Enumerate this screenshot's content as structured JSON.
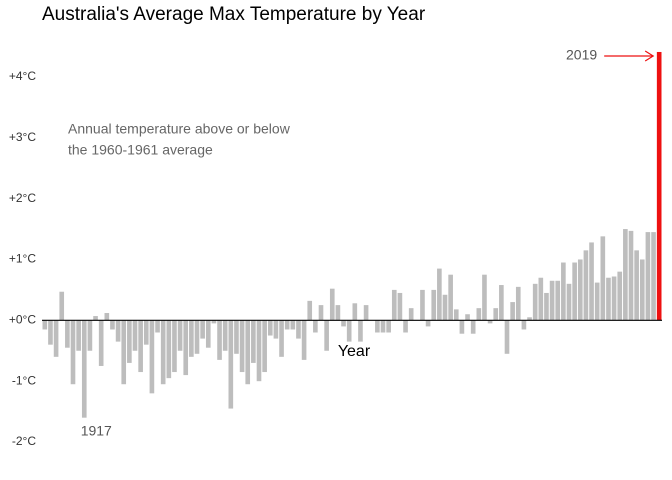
{
  "chart_data": {
    "type": "bar",
    "title": "Australia's Average Max Temperature by Year",
    "annotation": [
      "Annual temperature above or below",
      "the 1960-1961 average"
    ],
    "x_label": "Year",
    "categories": [
      null,
      null,
      null,
      null,
      null,
      null,
      null,
      "1917",
      null,
      null,
      null,
      null,
      null,
      null,
      null,
      null,
      null,
      null,
      null,
      null,
      null,
      null,
      null,
      null,
      null,
      null,
      null,
      null,
      null,
      null,
      null,
      null,
      null,
      null,
      null,
      null,
      null,
      null,
      null,
      null,
      null,
      null,
      null,
      null,
      null,
      null,
      null,
      null,
      null,
      null,
      null,
      null,
      null,
      null,
      null,
      null,
      null,
      null,
      null,
      null,
      null,
      null,
      null,
      null,
      null,
      null,
      null,
      null,
      null,
      null,
      null,
      null,
      null,
      null,
      null,
      null,
      null,
      null,
      null,
      null,
      null,
      null,
      null,
      null,
      null,
      null,
      null,
      null,
      null,
      null,
      null,
      null,
      null,
      null,
      null,
      null,
      null,
      null,
      null,
      null,
      null,
      null,
      null,
      null,
      null,
      null,
      null,
      null,
      null,
      "2019"
    ],
    "values": [
      -0.15,
      -0.4,
      -0.6,
      0.47,
      -0.45,
      -1.05,
      -0.5,
      -1.6,
      -0.5,
      0.07,
      -0.75,
      0.12,
      -0.15,
      -0.35,
      -1.05,
      -0.7,
      -0.5,
      -0.85,
      -0.4,
      -1.2,
      -0.2,
      -1.05,
      -0.95,
      -0.85,
      -0.5,
      -0.9,
      -0.6,
      -0.55,
      -0.3,
      -0.45,
      -0.05,
      -0.65,
      -0.5,
      -1.45,
      -0.55,
      -0.85,
      -1.05,
      -0.7,
      -1.0,
      -0.85,
      -0.25,
      -0.3,
      -0.6,
      -0.15,
      -0.15,
      -0.3,
      -0.65,
      0.32,
      -0.2,
      0.25,
      -0.5,
      0.52,
      0.25,
      -0.1,
      -0.35,
      0.28,
      -0.35,
      0.25,
      0,
      -0.2,
      -0.2,
      -0.2,
      0.5,
      0.45,
      -0.2,
      0.2,
      0,
      0.5,
      -0.1,
      0.5,
      0.85,
      0.42,
      0.75,
      0.18,
      -0.22,
      0.1,
      -0.22,
      0.2,
      0.75,
      -0.05,
      0.2,
      0.58,
      -0.55,
      0.3,
      0.55,
      -0.15,
      0.05,
      0.6,
      0.7,
      0.45,
      0.65,
      0.65,
      0.95,
      0.6,
      0.95,
      1.0,
      1.15,
      1.28,
      0.62,
      1.38,
      0.7,
      0.72,
      0.8,
      1.5,
      1.47,
      1.15,
      1.0,
      1.45,
      1.45,
      4.41
    ],
    "colors": [
      "#bdbdbd",
      "#bdbdbd",
      "#bdbdbd",
      "#bdbdbd",
      "#bdbdbd",
      "#bdbdbd",
      "#bdbdbd",
      "#bdbdbd",
      "#bdbdbd",
      "#bdbdbd",
      "#bdbdbd",
      "#bdbdbd",
      "#bdbdbd",
      "#bdbdbd",
      "#bdbdbd",
      "#bdbdbd",
      "#bdbdbd",
      "#bdbdbd",
      "#bdbdbd",
      "#bdbdbd",
      "#bdbdbd",
      "#bdbdbd",
      "#bdbdbd",
      "#bdbdbd",
      "#bdbdbd",
      "#bdbdbd",
      "#bdbdbd",
      "#bdbdbd",
      "#bdbdbd",
      "#bdbdbd",
      "#bdbdbd",
      "#bdbdbd",
      "#bdbdbd",
      "#bdbdbd",
      "#bdbdbd",
      "#bdbdbd",
      "#bdbdbd",
      "#bdbdbd",
      "#bdbdbd",
      "#bdbdbd",
      "#bdbdbd",
      "#bdbdbd",
      "#bdbdbd",
      "#bdbdbd",
      "#bdbdbd",
      "#bdbdbd",
      "#bdbdbd",
      "#bdbdbd",
      "#bdbdbd",
      "#bdbdbd",
      "#bdbdbd",
      "#bdbdbd",
      "#bdbdbd",
      "#bdbdbd",
      "#bdbdbd",
      "#bdbdbd",
      "#bdbdbd",
      "#bdbdbd",
      "#bdbdbd",
      "#bdbdbd",
      "#bdbdbd",
      "#bdbdbd",
      "#bdbdbd",
      "#bdbdbd",
      "#bdbdbd",
      "#bdbdbd",
      "#bdbdbd",
      "#bdbdbd",
      "#bdbdbd",
      "#bdbdbd",
      "#bdbdbd",
      "#bdbdbd",
      "#bdbdbd",
      "#bdbdbd",
      "#bdbdbd",
      "#bdbdbd",
      "#bdbdbd",
      "#bdbdbd",
      "#bdbdbd",
      "#bdbdbd",
      "#bdbdbd",
      "#bdbdbd",
      "#bdbdbd",
      "#bdbdbd",
      "#bdbdbd",
      "#bdbdbd",
      "#bdbdbd",
      "#bdbdbd",
      "#bdbdbd",
      "#bdbdbd",
      "#bdbdbd",
      "#bdbdbd",
      "#bdbdbd",
      "#bdbdbd",
      "#bdbdbd",
      "#bdbdbd",
      "#bdbdbd",
      "#bdbdbd",
      "#bdbdbd",
      "#bdbdbd",
      "#bdbdbd",
      "#bdbdbd",
      "#bdbdbd",
      "#bdbdbd",
      "#bdbdbd",
      "#bdbdbd",
      "#bdbdbd",
      "#bdbdbd",
      "#bdbdbd",
      "#ee1111"
    ],
    "ylim": [
      -2.2,
      4.5
    ],
    "yticks": [
      {
        "value": -2,
        "label": "-2°C"
      },
      {
        "value": -1,
        "label": "-1°C"
      },
      {
        "value": 0,
        "label": "+0°C"
      },
      {
        "value": 1,
        "label": "+1°C"
      },
      {
        "value": 2,
        "label": "+2°C"
      },
      {
        "value": 3,
        "label": "+3°C"
      },
      {
        "value": 4,
        "label": "+4°C"
      }
    ]
  }
}
